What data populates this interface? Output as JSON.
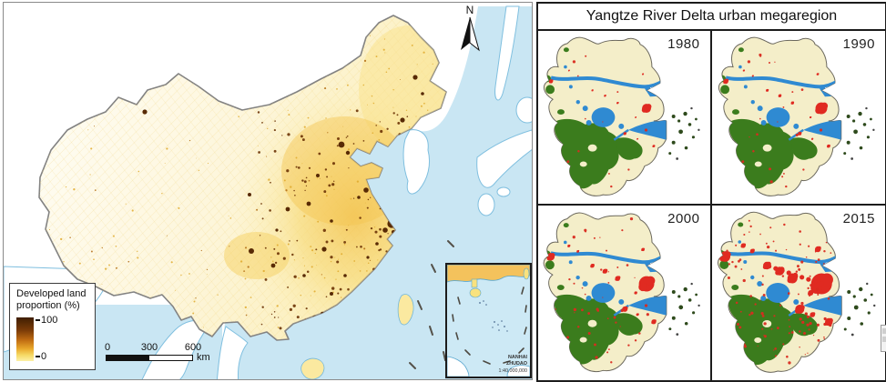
{
  "colors": {
    "sea": "#c9e6f3",
    "coastline": "#74b8db",
    "country_border": "#8a8a8a",
    "developed_high": "#3f1e02",
    "developed_low": "#fcf1a6",
    "urban_red": "#e02a21",
    "forest_green": "#3b7c1d",
    "water_blue": "#2f8ad2",
    "cropland": "#f4eec9"
  },
  "left_panel": {
    "north_arrow_label": "N",
    "legend": {
      "title_line1": "Developed land",
      "title_line2": "proportion (%)",
      "max_value": "100",
      "min_value": "0"
    },
    "scale_bar": {
      "tick_0": "0",
      "tick_300": "300",
      "tick_600": "600",
      "unit": "km"
    },
    "inset": {
      "name_line1": "NANHAI",
      "name_line2": "ZHUDAO",
      "scale": "1:40,000,000"
    }
  },
  "right_panel": {
    "title": "Yangtze River Delta urban megaregion",
    "maps": [
      {
        "year": "1980"
      },
      {
        "year": "1990"
      },
      {
        "year": "2000"
      },
      {
        "year": "2015"
      }
    ]
  }
}
